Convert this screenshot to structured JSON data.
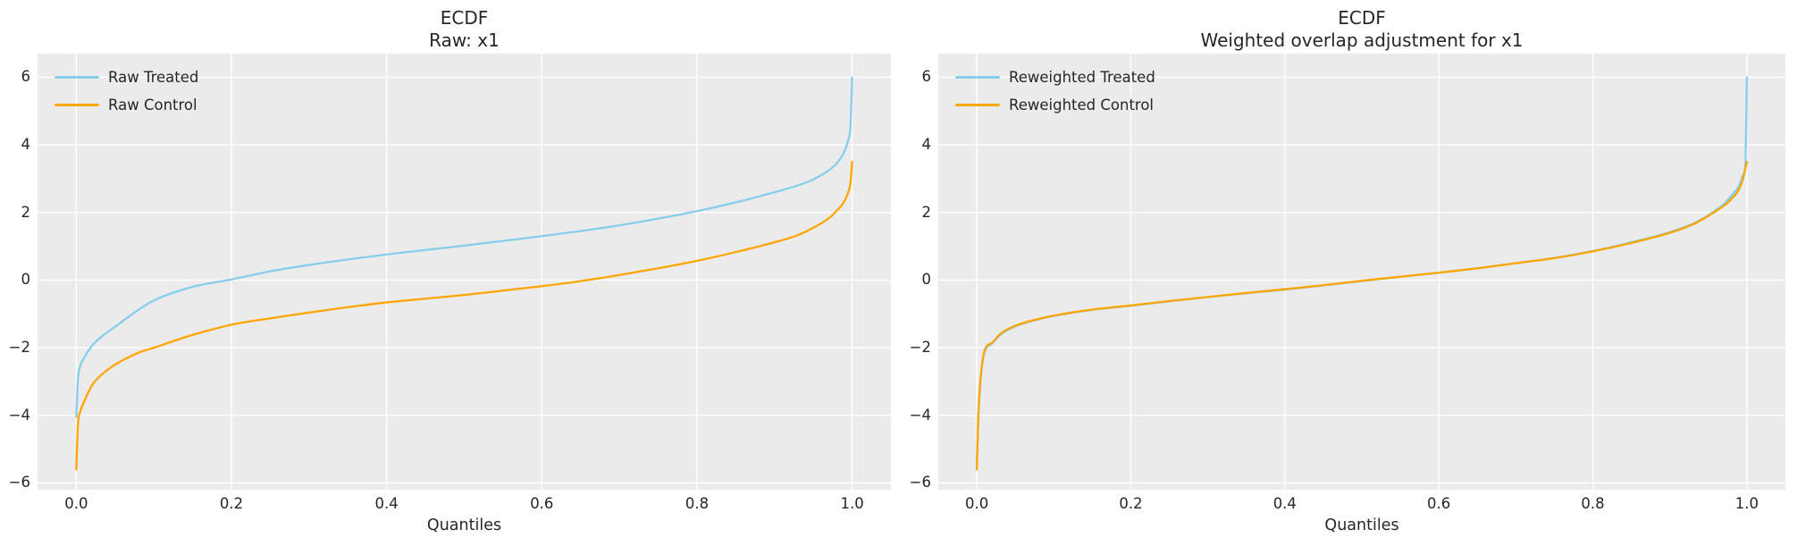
{
  "figure": {
    "background": "#ffffff",
    "panel_background": "#ebebeb",
    "grid_color": "#ffffff",
    "text_color": "#262626",
    "accent_blue": "#87CEEB",
    "accent_orange": "#FFA500"
  },
  "chart_data": [
    {
      "type": "line",
      "title": "ECDF\nRaw: x1",
      "title_lines": [
        "ECDF",
        "Raw: x1"
      ],
      "xlabel": "Quantiles",
      "ylabel": "",
      "grid": true,
      "legend_position": "upper left",
      "xlim": [
        -0.05,
        1.05
      ],
      "ylim": [
        -6.2,
        6.7
      ],
      "xticks": {
        "values": [
          0.0,
          0.2,
          0.4,
          0.6,
          0.8,
          1.0
        ],
        "labels": [
          "0.0",
          "0.2",
          "0.4",
          "0.6",
          "0.8",
          "1.0"
        ]
      },
      "yticks": {
        "values": [
          6,
          4,
          2,
          0,
          -2,
          -4,
          -6
        ],
        "labels": [
          "6",
          "4",
          "2",
          "0",
          "−2",
          "−4",
          "−6"
        ]
      },
      "x": [
        0,
        0.002,
        0.005,
        0.01,
        0.02,
        0.03,
        0.05,
        0.08,
        0.1,
        0.15,
        0.2,
        0.25,
        0.3,
        0.35,
        0.4,
        0.45,
        0.5,
        0.55,
        0.6,
        0.65,
        0.7,
        0.75,
        0.8,
        0.85,
        0.9,
        0.93,
        0.95,
        0.97,
        0.98,
        0.99,
        0.995,
        0.998,
        1.0
      ],
      "series": [
        {
          "name": "Raw Treated",
          "color": "#87CEEB",
          "values": [
            -4.05,
            -2.95,
            -2.55,
            -2.3,
            -1.95,
            -1.72,
            -1.38,
            -0.88,
            -0.6,
            -0.2,
            0.02,
            0.26,
            0.45,
            0.61,
            0.76,
            0.89,
            1.02,
            1.16,
            1.3,
            1.45,
            1.62,
            1.82,
            2.04,
            2.3,
            2.6,
            2.8,
            2.98,
            3.25,
            3.45,
            3.8,
            4.15,
            4.6,
            6.0
          ]
        },
        {
          "name": "Raw Control",
          "color": "#FFA500",
          "values": [
            -5.6,
            -4.3,
            -3.9,
            -3.6,
            -3.12,
            -2.85,
            -2.5,
            -2.15,
            -2.0,
            -1.62,
            -1.32,
            -1.13,
            -0.96,
            -0.8,
            -0.66,
            -0.55,
            -0.44,
            -0.31,
            -0.18,
            -0.03,
            0.15,
            0.35,
            0.57,
            0.83,
            1.12,
            1.33,
            1.55,
            1.83,
            2.05,
            2.33,
            2.6,
            2.9,
            3.5
          ]
        }
      ]
    },
    {
      "type": "line",
      "title": "ECDF\nWeighted overlap adjustment for x1",
      "title_lines": [
        "ECDF",
        "Weighted overlap adjustment for x1"
      ],
      "xlabel": "Quantiles",
      "ylabel": "",
      "grid": true,
      "legend_position": "upper left",
      "xlim": [
        -0.05,
        1.05
      ],
      "ylim": [
        -6.2,
        6.7
      ],
      "xticks": {
        "values": [
          0.0,
          0.2,
          0.4,
          0.6,
          0.8,
          1.0
        ],
        "labels": [
          "0.0",
          "0.2",
          "0.4",
          "0.6",
          "0.8",
          "1.0"
        ]
      },
      "yticks": {
        "values": [
          6,
          4,
          2,
          0,
          -2,
          -4,
          -6
        ],
        "labels": [
          "6",
          "4",
          "2",
          "0",
          "−2",
          "−4",
          "−6"
        ]
      },
      "x": [
        0,
        0.002,
        0.005,
        0.01,
        0.02,
        0.03,
        0.05,
        0.08,
        0.1,
        0.15,
        0.2,
        0.25,
        0.3,
        0.35,
        0.4,
        0.45,
        0.5,
        0.55,
        0.6,
        0.65,
        0.7,
        0.75,
        0.8,
        0.85,
        0.9,
        0.93,
        0.95,
        0.97,
        0.98,
        0.99,
        0.995,
        0.998,
        1.0
      ],
      "series": [
        {
          "name": "Reweighted Treated",
          "color": "#87CEEB",
          "values": [
            -5.55,
            -4.1,
            -2.95,
            -2.15,
            -1.88,
            -1.63,
            -1.37,
            -1.16,
            -1.06,
            -0.88,
            -0.76,
            -0.63,
            -0.5,
            -0.39,
            -0.28,
            -0.16,
            -0.03,
            0.1,
            0.22,
            0.35,
            0.5,
            0.66,
            0.86,
            1.12,
            1.42,
            1.67,
            1.92,
            2.25,
            2.5,
            2.8,
            3.1,
            3.4,
            6.0
          ]
        },
        {
          "name": "Reweighted Control",
          "color": "#FFA500",
          "values": [
            -5.6,
            -4.0,
            -2.9,
            -2.1,
            -1.85,
            -1.6,
            -1.35,
            -1.15,
            -1.05,
            -0.87,
            -0.75,
            -0.62,
            -0.5,
            -0.38,
            -0.27,
            -0.15,
            -0.02,
            0.1,
            0.22,
            0.35,
            0.5,
            0.65,
            0.85,
            1.1,
            1.4,
            1.65,
            1.9,
            2.2,
            2.4,
            2.7,
            3.0,
            3.3,
            3.5
          ]
        }
      ]
    }
  ]
}
